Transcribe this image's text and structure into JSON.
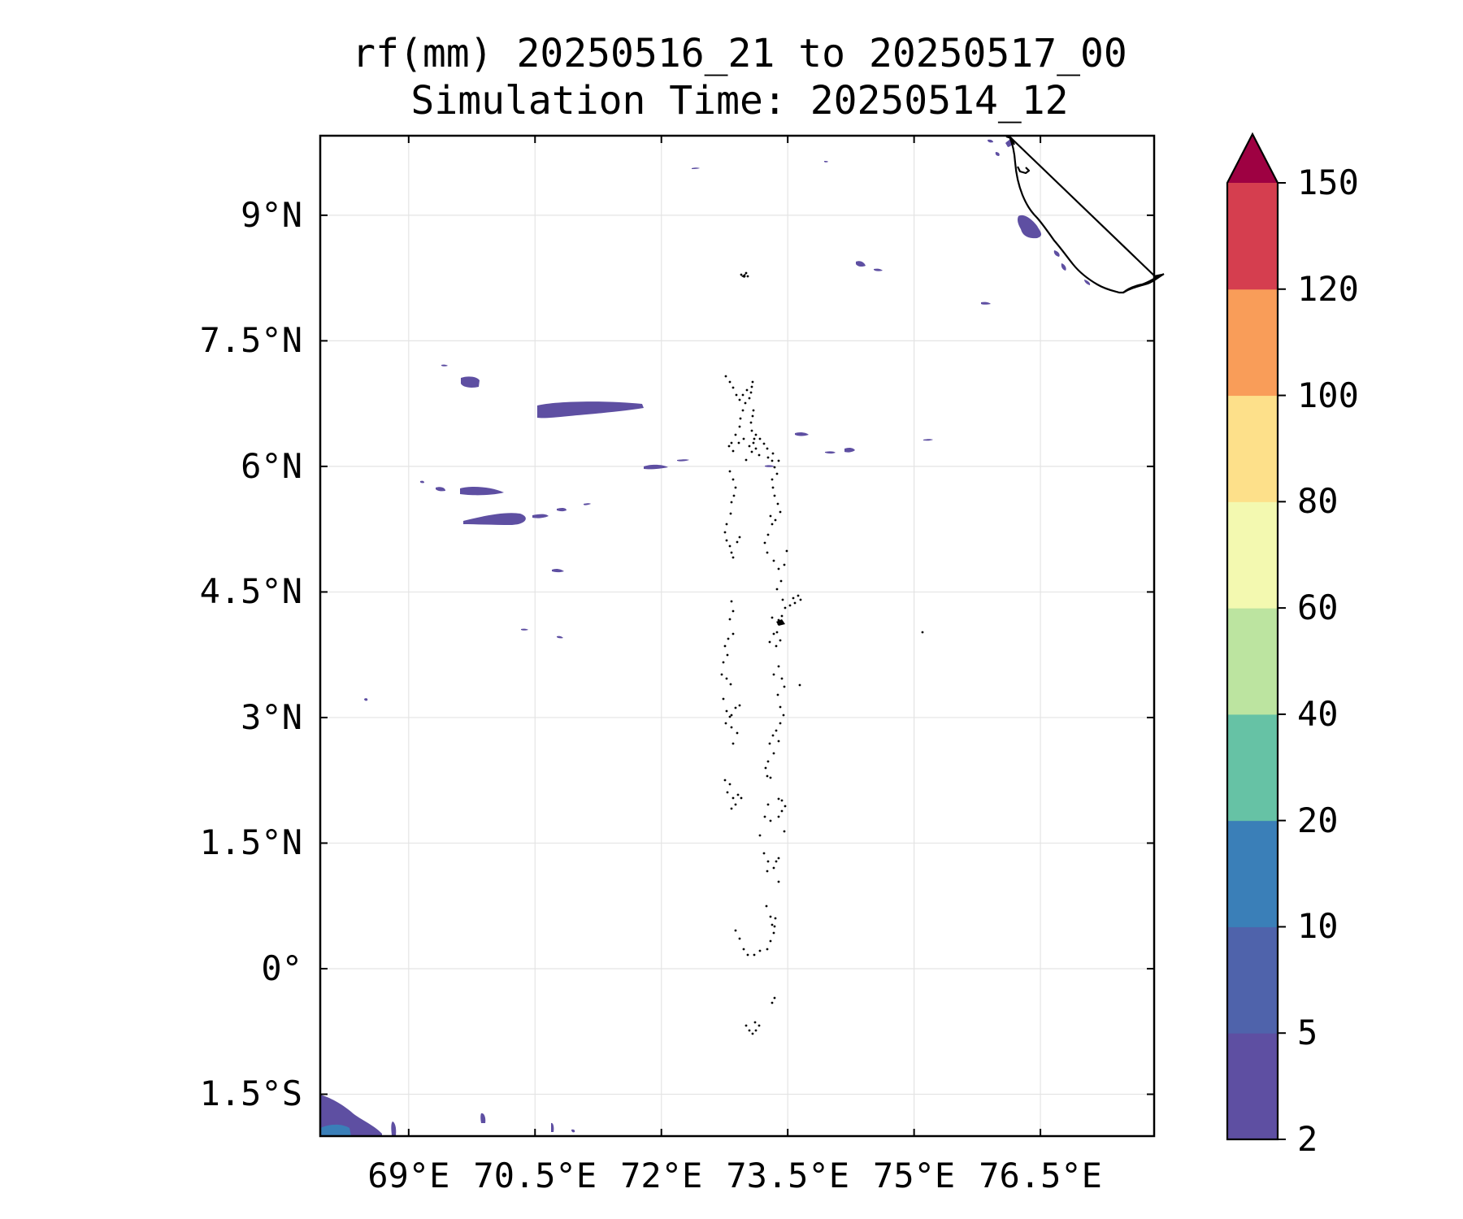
{
  "title": {
    "line1": "rf(mm) 20250516_21 to 20250517_00",
    "line2": "Simulation Time: 20250514_12"
  },
  "map": {
    "lon_range": [
      67.95,
      77.85
    ],
    "lat_range": [
      -2.0,
      9.95
    ],
    "lon_ticks": [
      {
        "value": 69.0,
        "label": "69°E"
      },
      {
        "value": 70.5,
        "label": "70.5°E"
      },
      {
        "value": 72.0,
        "label": "72°E"
      },
      {
        "value": 73.5,
        "label": "73.5°E"
      },
      {
        "value": 75.0,
        "label": "75°E"
      },
      {
        "value": 76.5,
        "label": "76.5°E"
      }
    ],
    "lat_ticks": [
      {
        "value": 9.0,
        "label": "9°N"
      },
      {
        "value": 7.5,
        "label": "7.5°N"
      },
      {
        "value": 6.0,
        "label": "6°N"
      },
      {
        "value": 4.5,
        "label": "4.5°N"
      },
      {
        "value": 3.0,
        "label": "3°N"
      },
      {
        "value": 1.5,
        "label": "1.5°N"
      },
      {
        "value": 0.0,
        "label": "0°"
      },
      {
        "value": -1.5,
        "label": "1.5°S"
      }
    ],
    "gridlines": true,
    "coastline_color": "#000000",
    "rain_fill_color": "#5e4fa2"
  },
  "colorbar": {
    "levels": [
      {
        "value": 2,
        "label": "2"
      },
      {
        "value": 5,
        "label": "5"
      },
      {
        "value": 10,
        "label": "10"
      },
      {
        "value": 20,
        "label": "20"
      },
      {
        "value": 40,
        "label": "40"
      },
      {
        "value": 60,
        "label": "60"
      },
      {
        "value": 80,
        "label": "80"
      },
      {
        "value": 100,
        "label": "100"
      },
      {
        "value": 120,
        "label": "120"
      },
      {
        "value": 150,
        "label": "150"
      }
    ],
    "colors": [
      "#5e4fa2",
      "#4f63ab",
      "#3a7fb8",
      "#66c2a5",
      "#bce4a0",
      "#f3f9b0",
      "#fde08a",
      "#f99d59",
      "#d53e4f"
    ],
    "extend_color": "#9e0142",
    "extend": "max"
  }
}
